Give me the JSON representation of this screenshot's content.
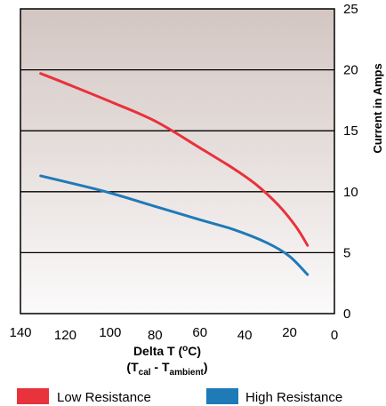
{
  "chart_data": {
    "type": "line",
    "xlabel": {
      "line1_main": "Delta T (",
      "line1_sup": "o",
      "line1_end": "C)",
      "line2_open": "(T",
      "line2_sub1": "cal",
      "line2_dash": " - T",
      "line2_sub2": "ambient",
      "line2_close": ")"
    },
    "ylabel": "Current in Amps",
    "xlim": [
      140,
      0
    ],
    "ylim": [
      0,
      25
    ],
    "x_ticks": [
      140,
      120,
      100,
      80,
      60,
      40,
      20,
      0
    ],
    "y_ticks": [
      0,
      5,
      10,
      15,
      20,
      25
    ],
    "grid": "horizontal",
    "legend_position": "bottom",
    "colors": {
      "low": "#e8323c",
      "high": "#1f7ab8",
      "bg_top": "#d3c6c2",
      "bg_bottom": "#fbfafa"
    },
    "series": [
      {
        "name": "Low Resistance",
        "color": "#e8323c",
        "points": [
          [
            131,
            19.7
          ],
          [
            120,
            18.9
          ],
          [
            100,
            17.4
          ],
          [
            80,
            15.8
          ],
          [
            60,
            13.6
          ],
          [
            45,
            11.9
          ],
          [
            35,
            10.6
          ],
          [
            25,
            8.9
          ],
          [
            17,
            7.1
          ],
          [
            12,
            5.6
          ]
        ]
      },
      {
        "name": "High Resistance",
        "color": "#1f7ab8",
        "points": [
          [
            131,
            11.3
          ],
          [
            115,
            10.6
          ],
          [
            100,
            9.9
          ],
          [
            80,
            8.8
          ],
          [
            60,
            7.7
          ],
          [
            45,
            6.9
          ],
          [
            30,
            5.8
          ],
          [
            20,
            4.7
          ],
          [
            12,
            3.2
          ]
        ]
      }
    ]
  }
}
